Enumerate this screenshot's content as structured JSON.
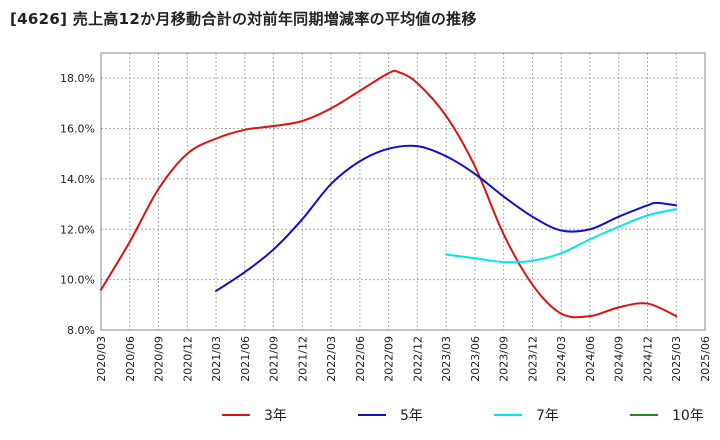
{
  "chart_data": {
    "type": "line",
    "title": "[4626]  売上高12か月移動合計の対前年同期増減率の平均値の推移",
    "xlabel": "",
    "ylabel": "",
    "ylim": [
      8.0,
      19.0
    ],
    "yticks": [
      8.0,
      10.0,
      12.0,
      14.0,
      16.0,
      18.0
    ],
    "ytick_labels": [
      "8.0%",
      "10.0%",
      "12.0%",
      "14.0%",
      "16.0%",
      "18.0%"
    ],
    "x_range": [
      "2020/03",
      "2025/06"
    ],
    "x_tick_labels": [
      "2020/03",
      "2020/06",
      "2020/09",
      "2020/12",
      "2021/03",
      "2021/06",
      "2021/09",
      "2021/12",
      "2022/03",
      "2022/06",
      "2022/09",
      "2022/12",
      "2023/03",
      "2023/06",
      "2023/09",
      "2023/12",
      "2024/03",
      "2024/06",
      "2024/09",
      "2024/12",
      "2025/03",
      "2025/06"
    ],
    "grid": true,
    "legend_position": "bottom",
    "series": [
      {
        "name": "3年",
        "color": "#dd1111",
        "x": [
          "2020/03",
          "2020/06",
          "2020/09",
          "2020/12",
          "2021/03",
          "2021/06",
          "2021/09",
          "2021/12",
          "2022/03",
          "2022/06",
          "2022/09",
          "2022/10",
          "2022/12",
          "2023/03",
          "2023/06",
          "2023/09",
          "2023/12",
          "2024/03",
          "2024/06",
          "2024/09",
          "2024/12",
          "2025/03"
        ],
        "values": [
          9.6,
          11.5,
          13.6,
          15.0,
          15.6,
          15.95,
          16.1,
          16.3,
          16.8,
          17.5,
          18.2,
          18.25,
          17.8,
          16.5,
          14.5,
          11.8,
          9.8,
          8.65,
          8.55,
          8.9,
          9.05,
          8.55
        ]
      },
      {
        "name": "5年",
        "color": "#1111cc",
        "x": [
          "2021/03",
          "2021/06",
          "2021/09",
          "2021/12",
          "2022/03",
          "2022/06",
          "2022/09",
          "2022/12",
          "2023/03",
          "2023/06",
          "2023/09",
          "2023/12",
          "2024/03",
          "2024/06",
          "2024/09",
          "2024/12",
          "2025/01",
          "2025/03"
        ],
        "values": [
          9.55,
          10.3,
          11.2,
          12.4,
          13.8,
          14.7,
          15.2,
          15.3,
          14.9,
          14.2,
          13.3,
          12.5,
          11.95,
          12.0,
          12.5,
          12.95,
          13.05,
          12.95
        ]
      },
      {
        "name": "7年",
        "color": "#00e5ee",
        "x": [
          "2023/03",
          "2023/06",
          "2023/09",
          "2023/12",
          "2024/03",
          "2024/06",
          "2024/09",
          "2024/12",
          "2025/03"
        ],
        "values": [
          11.0,
          10.85,
          10.7,
          10.75,
          11.05,
          11.6,
          12.1,
          12.55,
          12.8
        ]
      },
      {
        "name": "10年",
        "color": "#228822",
        "x": [],
        "values": []
      }
    ]
  }
}
